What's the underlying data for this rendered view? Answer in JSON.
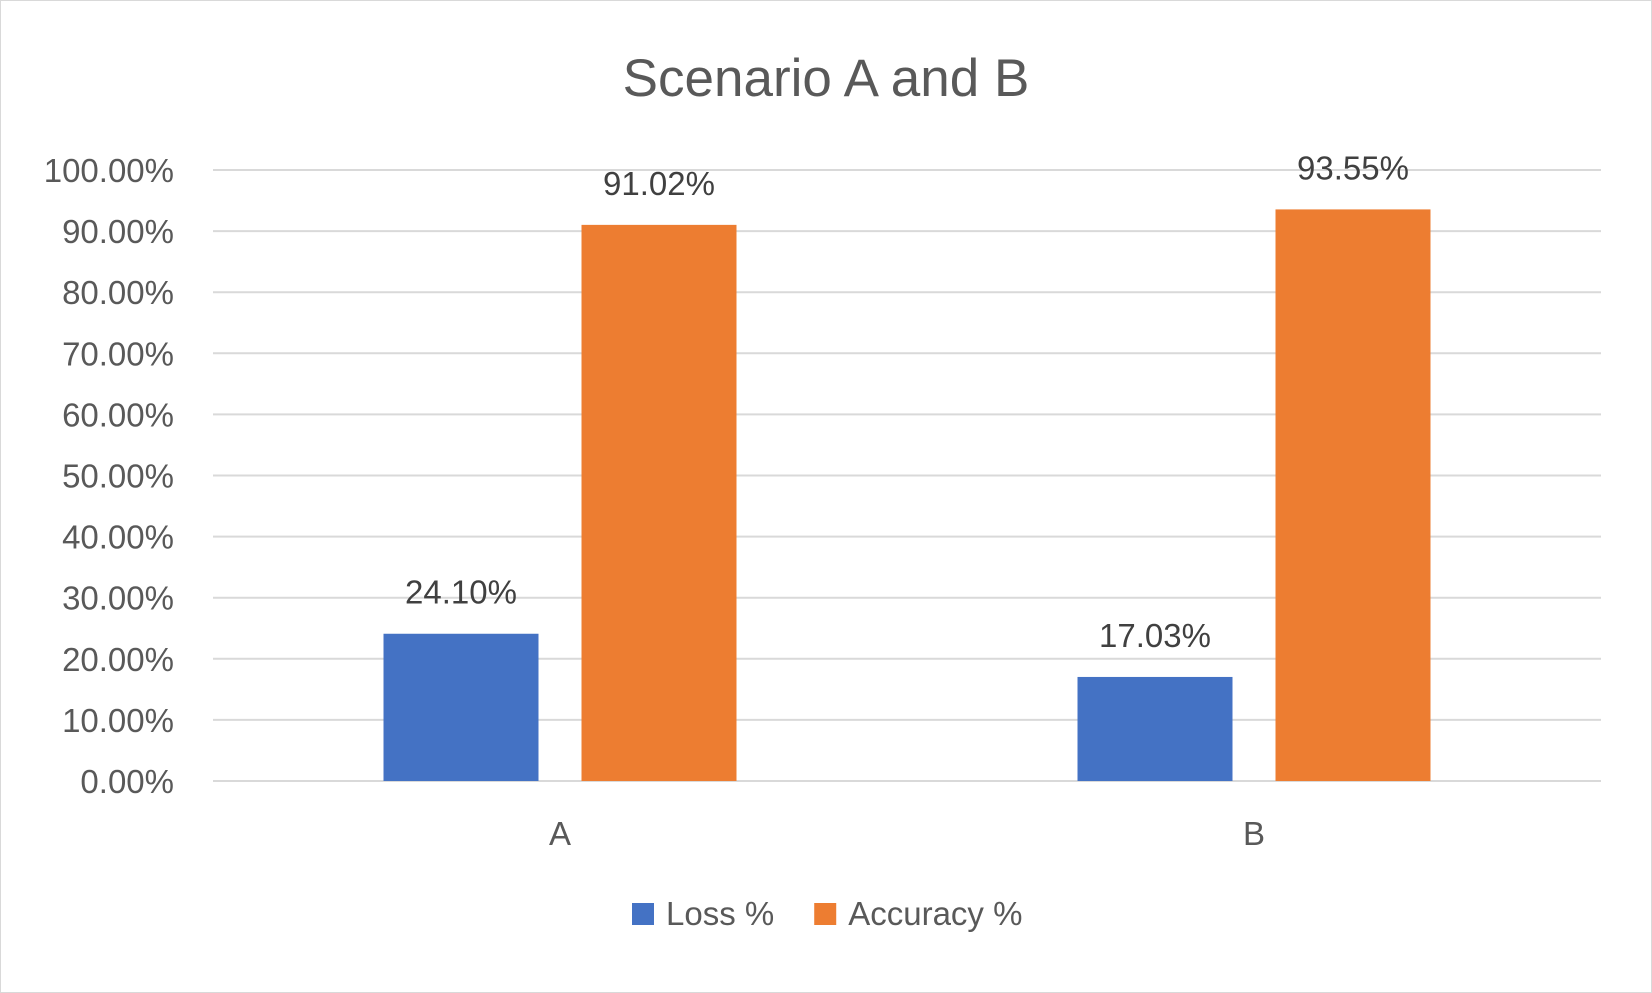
{
  "chart_data": {
    "type": "bar",
    "title": "Scenario A and B",
    "xlabel": "",
    "ylabel": "",
    "categories": [
      "A",
      "B"
    ],
    "series": [
      {
        "name": "Loss %",
        "values": [
          24.1,
          17.03
        ],
        "labels": [
          "24.10%",
          "17.03%"
        ],
        "color": "#4472c4"
      },
      {
        "name": "Accuracy %",
        "values": [
          91.02,
          93.55
        ],
        "labels": [
          "91.02%",
          "93.55%"
        ],
        "color": "#ed7d31"
      }
    ],
    "ylim": [
      0,
      100
    ],
    "yticks": [
      0,
      10,
      20,
      30,
      40,
      50,
      60,
      70,
      80,
      90,
      100
    ],
    "ytick_labels": [
      "0.00%",
      "10.00%",
      "20.00%",
      "30.00%",
      "40.00%",
      "50.00%",
      "60.00%",
      "70.00%",
      "80.00%",
      "90.00%",
      "100.00%"
    ],
    "grid": true,
    "gridline_color": "#d9d9d9",
    "legend_position": "bottom"
  }
}
